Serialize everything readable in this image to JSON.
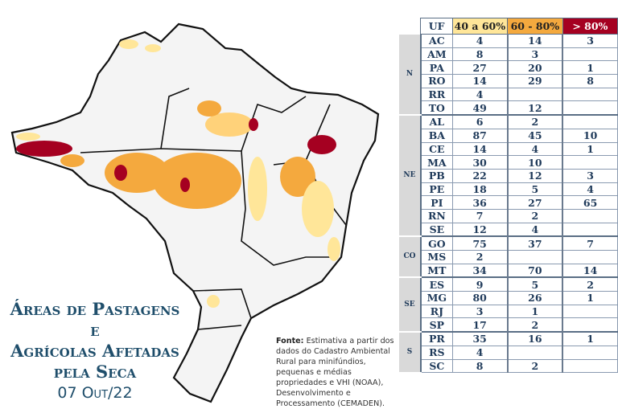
{
  "title": {
    "line1": "Áreas de Pastagens e",
    "line2": "Agrícolas Afetadas",
    "line3": "pela Seca",
    "date": "07 Out/22"
  },
  "source": {
    "label": "Fonte:",
    "text": "Estimativa a partir dos dados do Cadastro Ambiental Rural para minifúndios, pequenas e médias propriedades e VHI (NOAA), Desenvolvimento e Processamento (CEMADEN)."
  },
  "legend_colors": {
    "40 a 60%": "#ffe699",
    "60 - 80%": "#f4a93e",
    "> 80%": "#a50021"
  },
  "table": {
    "headers": [
      "UF",
      "40 a 60%",
      "60 - 80%",
      "> 80%"
    ],
    "regions": [
      {
        "name": "N",
        "rows": [
          [
            "AC",
            "4",
            "14",
            "3"
          ],
          [
            "AM",
            "8",
            "3",
            ""
          ],
          [
            "PA",
            "27",
            "20",
            "1"
          ],
          [
            "RO",
            "14",
            "29",
            "8"
          ],
          [
            "RR",
            "4",
            "",
            ""
          ],
          [
            "TO",
            "49",
            "12",
            ""
          ]
        ]
      },
      {
        "name": "NE",
        "rows": [
          [
            "AL",
            "6",
            "2",
            ""
          ],
          [
            "BA",
            "87",
            "45",
            "10"
          ],
          [
            "CE",
            "14",
            "4",
            "1"
          ],
          [
            "MA",
            "30",
            "10",
            ""
          ],
          [
            "PB",
            "22",
            "12",
            "3"
          ],
          [
            "PE",
            "18",
            "5",
            "4"
          ],
          [
            "PI",
            "36",
            "27",
            "65"
          ],
          [
            "RN",
            "7",
            "2",
            ""
          ],
          [
            "SE",
            "12",
            "4",
            ""
          ]
        ]
      },
      {
        "name": "CO",
        "rows": [
          [
            "GO",
            "75",
            "37",
            "7"
          ],
          [
            "MS",
            "2",
            "",
            ""
          ],
          [
            "MT",
            "34",
            "70",
            "14"
          ]
        ]
      },
      {
        "name": "SE",
        "rows": [
          [
            "ES",
            "9",
            "5",
            "2"
          ],
          [
            "MG",
            "80",
            "26",
            "1"
          ],
          [
            "RJ",
            "3",
            "1",
            ""
          ],
          [
            "SP",
            "17",
            "2",
            ""
          ]
        ]
      },
      {
        "name": "S",
        "rows": [
          [
            "PR",
            "35",
            "16",
            "1"
          ],
          [
            "RS",
            "4",
            "",
            ""
          ],
          [
            "SC",
            "8",
            "2",
            ""
          ]
        ]
      }
    ]
  }
}
